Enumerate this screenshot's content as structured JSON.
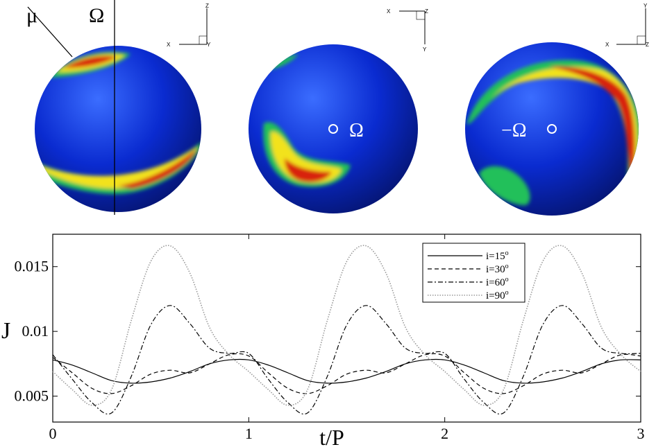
{
  "spheres": [
    {
      "triad": {
        "up": "Z",
        "left": "X",
        "right": "Y"
      },
      "labels": {
        "mu": "μ",
        "omega": "Ω"
      },
      "colors": {
        "base": "#0a2bd0",
        "highlight": "#3b6dff",
        "shade": "#051677"
      }
    },
    {
      "triad": {
        "top_left": "X",
        "top_right": "Z",
        "down": "Y"
      },
      "labels": {
        "omega": "Ω"
      },
      "colors": {
        "base": "#0a2bd0",
        "highlight": "#3b6dff",
        "shade": "#051677"
      }
    },
    {
      "triad": {
        "up": "Y",
        "left": "X",
        "right": "Z"
      },
      "labels": {
        "neg_omega": "−Ω"
      },
      "colors": {
        "base": "#0a2bd0",
        "highlight": "#3b6dff",
        "shade": "#051677"
      }
    }
  ],
  "chart_data": {
    "type": "line",
    "xlabel": "t/P",
    "ylabel": "J",
    "xlim": [
      0,
      3
    ],
    "ylim": [
      0.003,
      0.0175
    ],
    "xticks": [
      0,
      1,
      2,
      3
    ],
    "xtick_labels": [
      "0",
      "1",
      "2",
      "3"
    ],
    "yticks": [
      0.005,
      0.01,
      0.015
    ],
    "ytick_labels": [
      "0.005",
      "0.01",
      "0.015"
    ],
    "grid": false,
    "legend_position": "top-right",
    "series": [
      {
        "name": "i=15",
        "name_sup": "o",
        "style": "solid",
        "color": "#000000",
        "x": [
          0,
          0.1,
          0.2,
          0.3,
          0.4,
          0.5,
          0.6,
          0.7,
          0.8,
          0.9,
          1.0,
          1.1,
          1.2,
          1.3,
          1.4,
          1.5,
          1.6,
          1.7,
          1.8,
          1.9,
          2.0,
          2.1,
          2.2,
          2.3,
          2.4,
          2.5,
          2.6,
          2.7,
          2.8,
          2.9,
          3.0
        ],
        "values": [
          0.0078,
          0.0074,
          0.0068,
          0.0062,
          0.006,
          0.0061,
          0.0064,
          0.0069,
          0.0075,
          0.0078,
          0.0078,
          0.0074,
          0.0068,
          0.0062,
          0.006,
          0.0061,
          0.0064,
          0.0069,
          0.0075,
          0.0078,
          0.0078,
          0.0074,
          0.0068,
          0.0062,
          0.006,
          0.0061,
          0.0064,
          0.0069,
          0.0075,
          0.0078,
          0.0078
        ]
      },
      {
        "name": "i=30",
        "name_sup": "o",
        "style": "dashed",
        "color": "#000000",
        "x": [
          0,
          0.1,
          0.2,
          0.3,
          0.4,
          0.5,
          0.6,
          0.7,
          0.8,
          0.9,
          1.0,
          1.1,
          1.2,
          1.3,
          1.4,
          1.5,
          1.6,
          1.7,
          1.8,
          1.9,
          2.0,
          2.1,
          2.2,
          2.3,
          2.4,
          2.5,
          2.6,
          2.7,
          2.8,
          2.9,
          3.0
        ],
        "values": [
          0.008,
          0.0068,
          0.0056,
          0.0052,
          0.0058,
          0.0067,
          0.007,
          0.0068,
          0.0075,
          0.0082,
          0.0081,
          0.0068,
          0.0056,
          0.0052,
          0.0058,
          0.0067,
          0.007,
          0.0068,
          0.0075,
          0.0082,
          0.0081,
          0.0068,
          0.0056,
          0.0052,
          0.0058,
          0.0067,
          0.007,
          0.0068,
          0.0075,
          0.0082,
          0.0081
        ]
      },
      {
        "name": "i=60",
        "name_sup": "o",
        "style": "dashdot",
        "color": "#000000",
        "x": [
          0,
          0.1,
          0.2,
          0.3,
          0.4,
          0.5,
          0.6,
          0.7,
          0.8,
          0.9,
          1.0,
          1.1,
          1.2,
          1.3,
          1.4,
          1.5,
          1.6,
          1.7,
          1.8,
          1.9,
          2.0,
          2.1,
          2.2,
          2.3,
          2.4,
          2.5,
          2.6,
          2.7,
          2.8,
          2.9,
          3.0
        ],
        "values": [
          0.0082,
          0.0063,
          0.0045,
          0.0037,
          0.0065,
          0.0105,
          0.012,
          0.0106,
          0.0087,
          0.0083,
          0.0083,
          0.0063,
          0.0045,
          0.0037,
          0.0065,
          0.0105,
          0.012,
          0.0106,
          0.0087,
          0.0083,
          0.0083,
          0.0063,
          0.0045,
          0.0037,
          0.0065,
          0.0105,
          0.012,
          0.0106,
          0.0087,
          0.0083,
          0.0083
        ]
      },
      {
        "name": "i=90",
        "name_sup": "o",
        "style": "dotted",
        "color": "#999999",
        "x": [
          0,
          0.1,
          0.2,
          0.3,
          0.4,
          0.5,
          0.6,
          0.7,
          0.8,
          0.9,
          1.0,
          1.1,
          1.2,
          1.3,
          1.4,
          1.5,
          1.6,
          1.7,
          1.8,
          1.9,
          2.0,
          2.1,
          2.2,
          2.3,
          2.4,
          2.5,
          2.6,
          2.7,
          2.8,
          2.9,
          3.0
        ],
        "values": [
          0.0069,
          0.0055,
          0.0043,
          0.0055,
          0.0108,
          0.0154,
          0.0166,
          0.0145,
          0.0103,
          0.0082,
          0.0069,
          0.0055,
          0.0043,
          0.0055,
          0.0108,
          0.0154,
          0.0166,
          0.0145,
          0.0103,
          0.0082,
          0.0069,
          0.0055,
          0.0043,
          0.0055,
          0.0108,
          0.0154,
          0.0166,
          0.0145,
          0.0103,
          0.0082,
          0.0069
        ]
      }
    ]
  }
}
